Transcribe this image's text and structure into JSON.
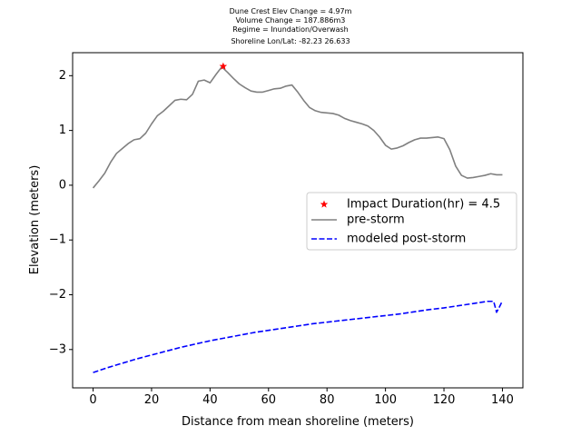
{
  "chart_data": {
    "type": "line",
    "title_lines": [
      "Dune Crest Elev Change = 4.97m",
      "Volume Change = 187.886m3",
      "Regime = Inundation/Overwash",
      "Shoreline Lon/Lat: -82.23 26.633"
    ],
    "xlabel": "Distance from mean shoreline (meters)",
    "ylabel": "Elevation (meters)",
    "xlim": [
      -7,
      147
    ],
    "ylim": [
      -3.7,
      2.42
    ],
    "xticks": [
      0,
      20,
      40,
      60,
      80,
      100,
      120,
      140
    ],
    "yticks": [
      -3,
      -2,
      -1,
      0,
      1,
      2
    ],
    "grid": false,
    "legend_position": "center-right",
    "marker": {
      "label": "Impact Duration(hr) = 4.5",
      "x": 44.5,
      "y": 2.17,
      "color": "#ff0000",
      "symbol": "star"
    },
    "series": [
      {
        "name": "pre-storm",
        "color": "#808080",
        "style": "solid",
        "x": [
          0,
          2,
          4,
          6,
          8,
          10,
          12,
          14,
          16,
          18,
          20,
          22,
          24,
          26,
          28,
          30,
          32,
          34,
          36,
          38,
          40,
          42,
          44,
          46,
          48,
          50,
          52,
          54,
          56,
          58,
          60,
          62,
          64,
          66,
          68,
          70,
          72,
          74,
          76,
          78,
          80,
          82,
          84,
          86,
          88,
          90,
          92,
          94,
          96,
          98,
          100,
          102,
          104,
          106,
          108,
          110,
          112,
          114,
          116,
          118,
          120,
          122,
          124,
          126,
          128,
          130,
          132,
          134,
          136,
          138,
          140
        ],
        "y": [
          -0.05,
          0.08,
          0.22,
          0.42,
          0.58,
          0.67,
          0.76,
          0.83,
          0.85,
          0.95,
          1.12,
          1.27,
          1.35,
          1.45,
          1.55,
          1.57,
          1.56,
          1.66,
          1.9,
          1.92,
          1.87,
          2.02,
          2.16,
          2.06,
          1.95,
          1.85,
          1.78,
          1.72,
          1.7,
          1.7,
          1.73,
          1.76,
          1.77,
          1.81,
          1.83,
          1.7,
          1.55,
          1.42,
          1.36,
          1.33,
          1.32,
          1.31,
          1.28,
          1.22,
          1.18,
          1.15,
          1.12,
          1.08,
          1.0,
          0.88,
          0.73,
          0.66,
          0.68,
          0.72,
          0.78,
          0.83,
          0.86,
          0.86,
          0.87,
          0.88,
          0.85,
          0.65,
          0.35,
          0.18,
          0.13,
          0.14,
          0.16,
          0.18,
          0.21,
          0.19,
          0.19
        ]
      },
      {
        "name": "modeled post-storm",
        "color": "#0000ff",
        "style": "dashed",
        "x": [
          0,
          5,
          10,
          15,
          20,
          25,
          30,
          35,
          40,
          45,
          50,
          55,
          60,
          65,
          70,
          75,
          80,
          85,
          90,
          95,
          100,
          105,
          110,
          115,
          120,
          125,
          130,
          135,
          137,
          138,
          139,
          140
        ],
        "y": [
          -3.42,
          -3.33,
          -3.25,
          -3.17,
          -3.1,
          -3.03,
          -2.96,
          -2.9,
          -2.84,
          -2.79,
          -2.74,
          -2.69,
          -2.65,
          -2.61,
          -2.57,
          -2.53,
          -2.5,
          -2.47,
          -2.44,
          -2.41,
          -2.38,
          -2.35,
          -2.31,
          -2.27,
          -2.24,
          -2.2,
          -2.16,
          -2.12,
          -2.12,
          -2.32,
          -2.22,
          -2.11
        ]
      }
    ]
  }
}
